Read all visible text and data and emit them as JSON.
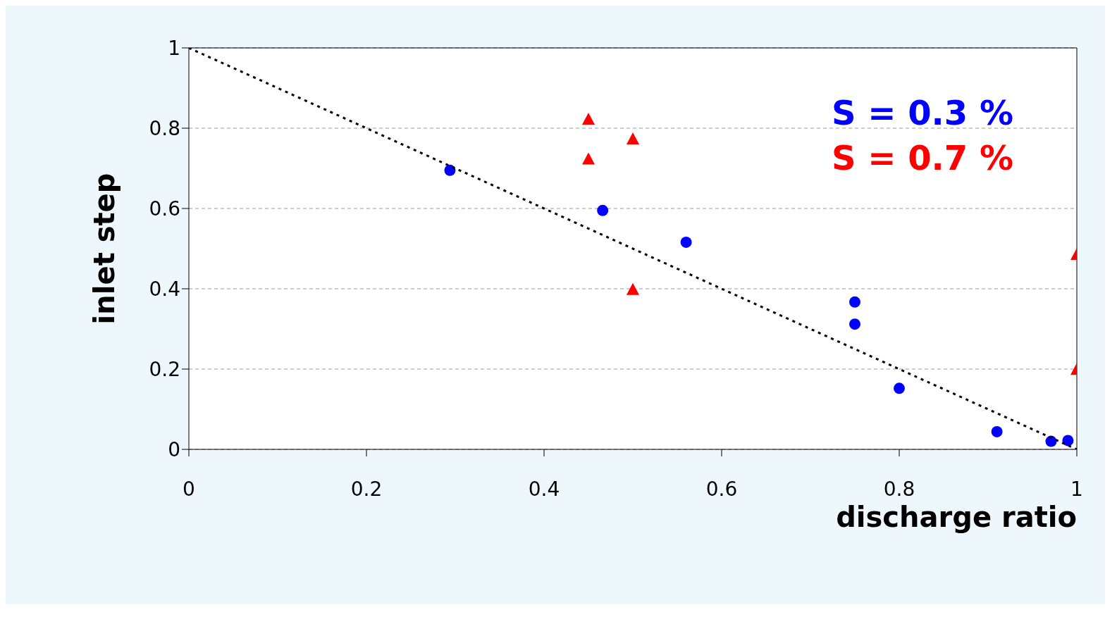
{
  "chart_data": {
    "type": "scatter",
    "xlabel": "discharge ratio",
    "ylabel": "inlet step",
    "xlim": [
      0,
      1
    ],
    "ylim": [
      0,
      1
    ],
    "xticks": [
      0,
      0.2,
      0.4,
      0.6,
      0.8,
      1
    ],
    "yticks": [
      0,
      0.2,
      0.4,
      0.6,
      0.8,
      1
    ],
    "grid": "y",
    "legend": "top right",
    "series": [
      {
        "name": "S = 0.3 %",
        "color": "#0000ff",
        "marker": "circle",
        "x": [
          0.294,
          0.466,
          0.56,
          0.75,
          0.75,
          0.8,
          0.91,
          0.971,
          0.99
        ],
        "values": [
          0.695,
          0.595,
          0.516,
          0.367,
          0.312,
          0.152,
          0.044,
          0.02,
          0.022
        ]
      },
      {
        "name": "S = 0.7 %",
        "color": "#ff0000",
        "marker": "triangle",
        "x": [
          0.45,
          0.45,
          0.5,
          0.5,
          1,
          1
        ],
        "values": [
          0.821,
          0.722,
          0.772,
          0.397,
          0.484,
          0.198
        ]
      },
      {
        "type": "line",
        "color": "#000000",
        "line_style": "dotted",
        "marker": "none",
        "x": [
          0,
          1
        ],
        "values": [
          1,
          0
        ]
      }
    ]
  }
}
